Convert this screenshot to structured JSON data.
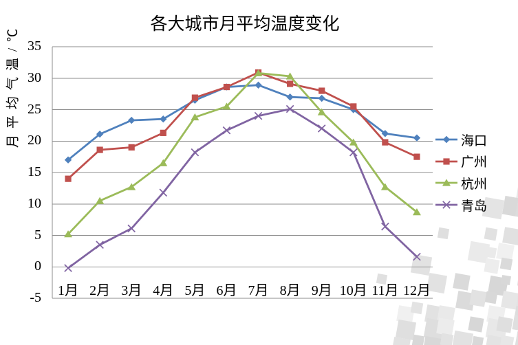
{
  "chart_data": {
    "type": "line",
    "title": "各大城市月平均温度变化",
    "ylabel": "月平均气温/℃",
    "categories": [
      "1月",
      "2月",
      "3月",
      "4月",
      "5月",
      "6月",
      "7月",
      "8月",
      "9月",
      "10月",
      "11月",
      "12月"
    ],
    "yticks": [
      35,
      30,
      25,
      20,
      15,
      10,
      5,
      0,
      -5
    ],
    "ylim": [
      -5,
      35
    ],
    "grid": true,
    "legend_position": "right",
    "gridline_color": "#8E8E8E",
    "text_color": "#000000",
    "background_color": "#FFFFFF",
    "series": [
      {
        "id": "haikou",
        "name": "海口",
        "marker": "diamond",
        "color": "#4F81BD",
        "values": [
          17.0,
          21.1,
          23.3,
          23.5,
          26.5,
          28.6,
          28.9,
          27.0,
          26.8,
          25.0,
          21.2,
          20.5
        ]
      },
      {
        "id": "guangzhou",
        "name": "广州",
        "marker": "square",
        "color": "#C0504D",
        "values": [
          14.0,
          18.6,
          19.0,
          21.3,
          26.9,
          28.6,
          30.9,
          29.1,
          28.0,
          25.5,
          19.8,
          17.5
        ]
      },
      {
        "id": "hangzhou",
        "name": "杭州",
        "marker": "triangle",
        "color": "#9BBB59",
        "values": [
          5.2,
          10.5,
          12.7,
          16.5,
          23.8,
          25.5,
          30.8,
          30.3,
          24.6,
          19.8,
          12.7,
          8.7
        ]
      },
      {
        "id": "qingdao",
        "name": "青岛",
        "marker": "x",
        "color": "#8064A2",
        "values": [
          -0.2,
          3.5,
          6.1,
          11.8,
          18.2,
          21.7,
          24.0,
          25.1,
          22.0,
          18.2,
          6.4,
          1.6
        ]
      }
    ]
  }
}
